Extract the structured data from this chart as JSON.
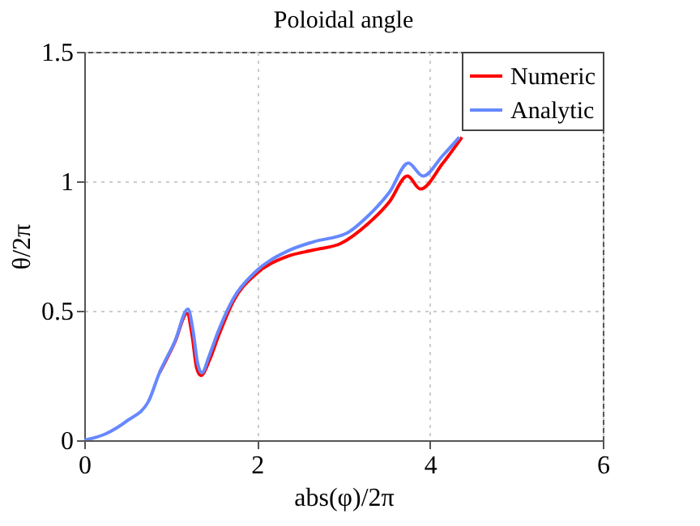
{
  "chart_data": {
    "type": "line",
    "title": "Poloidal angle",
    "xlabel": "abs(φ)/2π",
    "ylabel": "θ/2π",
    "xlim": [
      0,
      6
    ],
    "ylim": [
      0,
      1.5
    ],
    "xticks": [
      0,
      2,
      4,
      6
    ],
    "yticks": [
      0,
      0.5,
      1,
      1.5
    ],
    "grid": true,
    "legend": "top right",
    "line_style": "solid",
    "marker": "none",
    "series": [
      {
        "name": "Numeric",
        "color": "#ff0000",
        "x": [
          0.87,
          1.05,
          1.19,
          1.25,
          1.3,
          1.35,
          1.45,
          1.55,
          1.73,
          1.98,
          2.35,
          2.66,
          2.97,
          3.28,
          3.53,
          3.74,
          3.89,
          4.15,
          4.37
        ],
        "values": [
          0.26,
          0.38,
          0.49,
          0.4,
          0.28,
          0.25,
          0.31,
          0.4,
          0.54,
          0.64,
          0.71,
          0.735,
          0.76,
          0.835,
          0.92,
          1.02,
          0.97,
          1.07,
          1.17
        ]
      },
      {
        "name": "Analytic",
        "color": "#6688ff",
        "x": [
          0,
          0.25,
          0.5,
          0.74,
          0.87,
          1.05,
          1.2,
          1.26,
          1.31,
          1.36,
          1.45,
          1.55,
          1.73,
          1.98,
          2.35,
          2.66,
          3.04,
          3.28,
          3.53,
          3.75,
          3.92,
          4.15,
          4.34
        ],
        "values": [
          0,
          0.025,
          0.076,
          0.148,
          0.26,
          0.383,
          0.506,
          0.42,
          0.3,
          0.26,
          0.33,
          0.42,
          0.55,
          0.65,
          0.73,
          0.767,
          0.8,
          0.865,
          0.957,
          1.07,
          1.02,
          1.1,
          1.17
        ]
      }
    ]
  }
}
